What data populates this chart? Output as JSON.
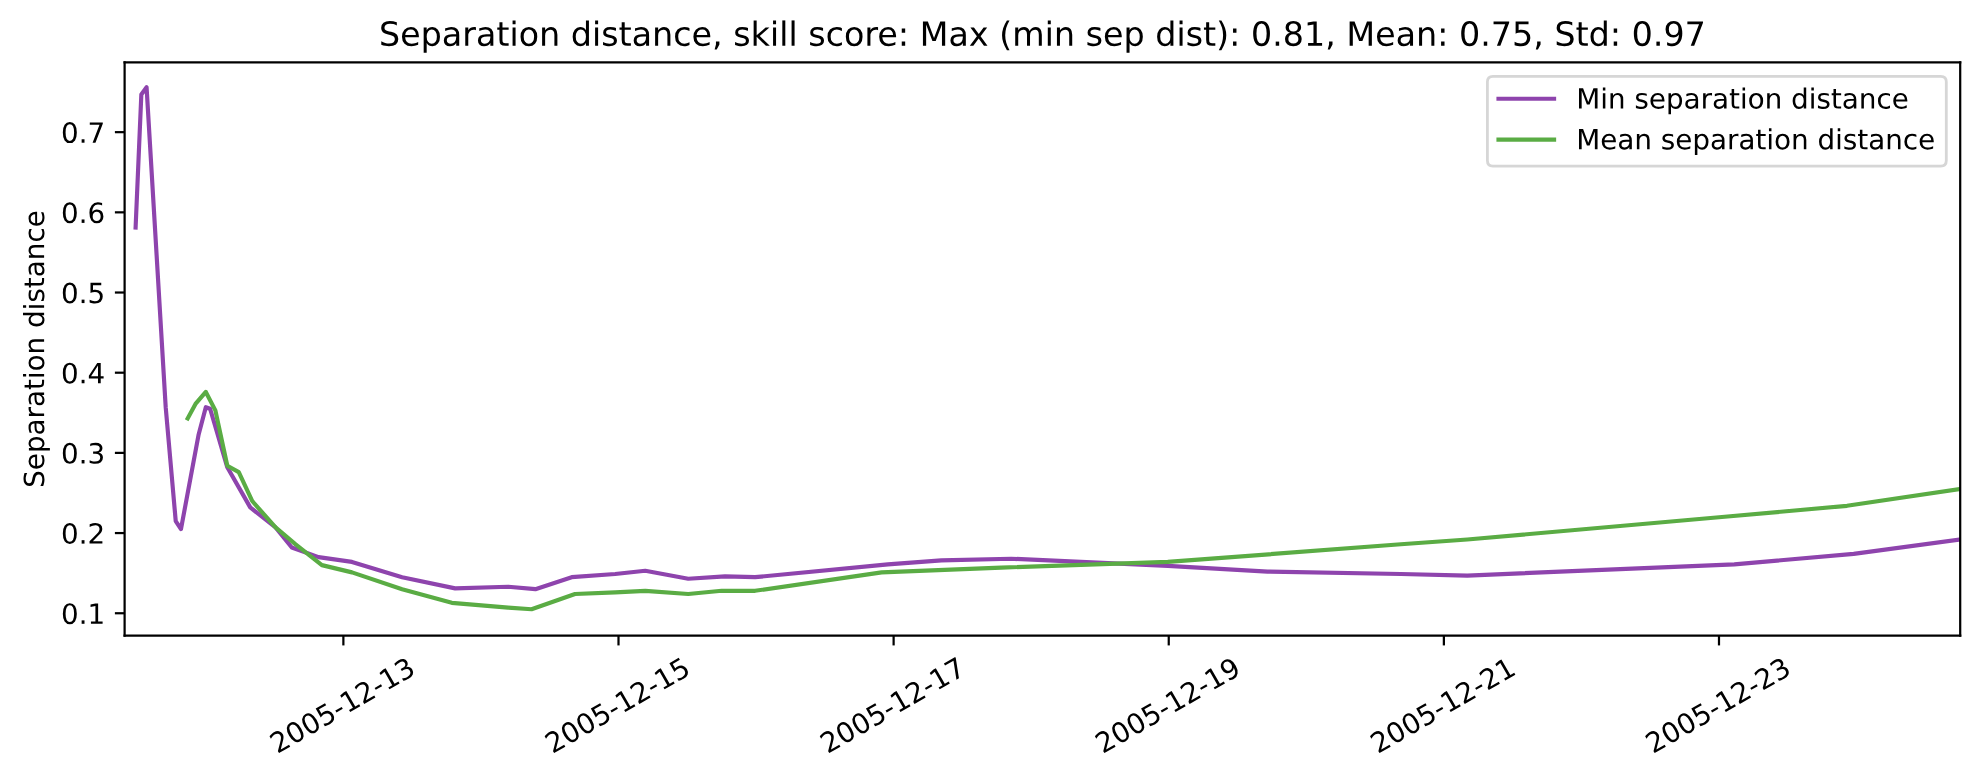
{
  "chart_data": {
    "type": "line",
    "title": "Separation distance, skill score: Max (min sep dist): 0.81, Mean: 0.75, Std: 0.97",
    "ylabel": "Separation distance",
    "xlim": [
      "2005-12-11T09:50",
      "2005-12-24T18:05"
    ],
    "xticks": [
      "2005-12-13",
      "2005-12-15",
      "2005-12-17",
      "2005-12-19",
      "2005-12-21",
      "2005-12-23"
    ],
    "ylim": [
      0.072,
      0.787
    ],
    "yticks": [
      0.1,
      0.2,
      0.3,
      0.4,
      0.5,
      0.6,
      0.7
    ],
    "legend": "top right",
    "grid": false,
    "series": [
      {
        "name": "Min separation distance",
        "color": "#8e44ad",
        "x": [
          "2005-12-11T11:45",
          "2005-12-11T12:45",
          "2005-12-11T13:40",
          "2005-12-11T17:00",
          "2005-12-11T18:45",
          "2005-12-11T19:40",
          "2005-12-11T22:45",
          "2005-12-12T00:00",
          "2005-12-12T00:45",
          "2005-12-12T03:45",
          "2005-12-12T07:45",
          "2005-12-12T12:10",
          "2005-12-12T15:00",
          "2005-12-12T19:40",
          "2005-12-13T01:30",
          "2005-12-13T10:15",
          "2005-12-13T19:30",
          "2005-12-14T04:45",
          "2005-12-14T09:30",
          "2005-12-14T15:50",
          "2005-12-14T23:25",
          "2005-12-15T04:40",
          "2005-12-15T12:10",
          "2005-12-15T18:35",
          "2005-12-15T23:50",
          "2005-12-16T23:00",
          "2005-12-17T08:20",
          "2005-12-17T20:30",
          "2005-12-18T23:50",
          "2005-12-19T17:15",
          "2005-12-20T16:30",
          "2005-12-21T04:05",
          "2005-12-23T02:40",
          "2005-12-23T23:30",
          "2005-12-24T18:05"
        ],
        "values": [
          0.581,
          0.747,
          0.756,
          0.357,
          0.215,
          0.205,
          0.323,
          0.357,
          0.355,
          0.282,
          0.232,
          0.207,
          0.182,
          0.17,
          0.164,
          0.145,
          0.131,
          0.133,
          0.13,
          0.145,
          0.149,
          0.153,
          0.143,
          0.146,
          0.145,
          0.161,
          0.166,
          0.168,
          0.159,
          0.152,
          0.149,
          0.147,
          0.161,
          0.174,
          0.192
        ]
      },
      {
        "name": "Mean separation distance",
        "color": "#5aac44",
        "x": [
          "2005-12-11T20:50",
          "2005-12-11T22:12",
          "2005-12-12T00:00",
          "2005-12-12T01:40",
          "2005-12-12T03:45",
          "2005-12-12T05:45",
          "2005-12-12T08:05",
          "2005-12-12T12:10",
          "2005-12-12T15:40",
          "2005-12-12T20:15",
          "2005-12-13T01:30",
          "2005-12-13T10:15",
          "2005-12-13T18:55",
          "2005-12-14T04:45",
          "2005-12-14T08:50",
          "2005-12-14T16:25",
          "2005-12-14T23:25",
          "2005-12-15T04:40",
          "2005-12-15T12:10",
          "2005-12-15T18:00",
          "2005-12-15T23:50",
          "2005-12-16T21:55",
          "2005-12-17T18:45",
          "2005-12-18T23:50",
          "2005-12-20T16:30",
          "2005-12-21T04:05",
          "2005-12-23T00:30",
          "2005-12-23T22:20",
          "2005-12-24T18:05"
        ],
        "values": [
          0.343,
          0.361,
          0.376,
          0.353,
          0.284,
          0.276,
          0.24,
          0.207,
          0.186,
          0.16,
          0.151,
          0.13,
          0.113,
          0.107,
          0.105,
          0.124,
          0.126,
          0.128,
          0.124,
          0.128,
          0.128,
          0.151,
          0.157,
          0.164,
          0.186,
          0.192,
          0.22,
          0.234,
          0.255
        ]
      }
    ]
  }
}
